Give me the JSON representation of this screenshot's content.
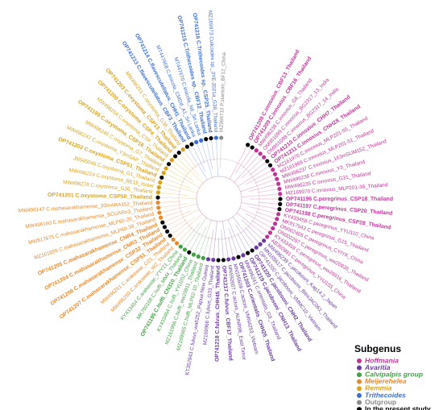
{
  "legend": {
    "title": "Subgenus",
    "entries": [
      {
        "name": "Hoffmania",
        "color": "#c2339a",
        "italic": true
      },
      {
        "name": "Avaritia",
        "color": "#6a3aa0",
        "italic": true
      },
      {
        "name": "Calvipalpis group",
        "color": "#44a047",
        "italic": true
      },
      {
        "name": "Meijerehelea",
        "color": "#e8892a",
        "italic": true
      },
      {
        "name": "Remmia",
        "color": "#d9a21b",
        "italic": true
      },
      {
        "name": "Trithecoides",
        "color": "#3d6fd0",
        "italic": true
      },
      {
        "name": "Outgroup",
        "color": "#8a8a8a",
        "italic": false
      },
      {
        "name": "In the present study",
        "color": "#000000",
        "italic": false
      }
    ]
  },
  "leaves": [
    {
      "label": "OP741208 C.innoxius_CBF13_Thailand",
      "group": 0,
      "study": true
    },
    {
      "label": "OP741209 C.innoxius_CBF16_Thailand",
      "group": 0,
      "study": true
    },
    {
      "label": "MW496238 C.innoxius_G8_Thailand",
      "group": 0,
      "study": false
    },
    {
      "label": "OM951099 C.innoxius_BG2317_13_India",
      "group": 0,
      "study": false
    },
    {
      "label": "OM951098 C.innoxius_BG2317_14_India",
      "group": 0,
      "study": false
    },
    {
      "label": "OP741210 C.innoxius_CHH7_Thailand",
      "group": 0,
      "study": true
    },
    {
      "label": "OP741211 C.innoxius_CNH28_Thailand",
      "group": 0,
      "study": true
    },
    {
      "label": "MZ161970 C.innoxius_MLP201-55_Thailand",
      "group": 0,
      "study": false
    },
    {
      "label": "MZ161969 C.innoxius_MLP201-51_Thailand",
      "group": 0,
      "study": false
    },
    {
      "label": "MW496237 C.innoxius_163mSUM152_Thailand",
      "group": 0,
      "study": false
    },
    {
      "label": "MW496236 C.innoxius_Y3_Thailand",
      "group": 0,
      "study": false
    },
    {
      "label": "MW496235 C.innoxius_G31_Thailand",
      "group": 0,
      "study": false
    },
    {
      "label": "MZ169970 C.innoxius_MLP201-38_Thailand",
      "group": 0,
      "study": false
    },
    {
      "label": "OP741196 C.peregrinus_CSP18_Thailand",
      "group": 0,
      "study": true
    },
    {
      "label": "OP741197 C.peregrinus_CSP20_Thailand",
      "group": 0,
      "study": true
    },
    {
      "label": "OP741198 C.peregrinus_CSP28_Thailand",
      "group": 0,
      "study": true
    },
    {
      "label": "KY433458 C.peregrinus_YYU110_China",
      "group": 0,
      "study": false
    },
    {
      "label": "MK917543 C.peregrinus_G15_Thailand",
      "group": 0,
      "study": false
    },
    {
      "label": "ON002405 C.peregrinus_CYIYK_China",
      "group": 0,
      "study": false
    },
    {
      "label": "ON002297 C.peregrinus_ww20936_Thailand",
      "group": 0,
      "study": false
    },
    {
      "label": "KY433459 C.peregrinus_ww20916_Thailand",
      "group": 0,
      "study": false
    },
    {
      "label": "AB360991 C.peregrinus_YYU103_China",
      "group": 0,
      "study": false
    },
    {
      "label": "MW496239 C.jacobsoni_Kag14.2_Japan",
      "group": 1,
      "study": false
    },
    {
      "label": "MN165617 C.jacobsoni_BitniJAC061_Thailand",
      "group": 1,
      "study": false
    },
    {
      "label": "OP741200 C.jacobsoni_VMMC10_Vietnam",
      "group": 1,
      "study": false
    },
    {
      "label": "OP741220 C.jacobsoni_CNH2_Thailand",
      "group": 1,
      "study": true
    },
    {
      "label": "OP741219 C.jacobsoni_CNH13_Thailand",
      "group": 1,
      "study": true
    },
    {
      "label": "MW496241 C.orientalis_G9_Thailand",
      "group": 1,
      "study": false
    },
    {
      "label": "OP741203 C.orientalis_CHH25_Thailand",
      "group": 1,
      "study": true
    },
    {
      "label": "MN166609 C.actoni_VMN4253_Vietnam",
      "group": 1,
      "study": false
    },
    {
      "label": "MN592607 C.actoni_AUNR96_East Timor",
      "group": 1,
      "study": false
    },
    {
      "label": "OP741217 C.fulvus_CBF17_Thailand",
      "group": 1,
      "study": true
    },
    {
      "label": "OP741218 C.fulvus_CHH45_Thailand",
      "group": 1,
      "study": true
    },
    {
      "label": "MZ169966 C.fulvus_G33_Thailand",
      "group": 1,
      "study": false
    },
    {
      "label": "KT352943 C.fulvus_wa6252_Papua New Guinea",
      "group": 1,
      "study": false
    },
    {
      "label": "MZ169965 C.huffi_MLP62-10_Thailand",
      "group": 2,
      "study": false
    },
    {
      "label": "MZ161966 C.huffi_ww20911_Thailand",
      "group": 2,
      "study": false
    },
    {
      "label": "KY433464 C.huffi_YYU202_China",
      "group": 2,
      "study": false
    },
    {
      "label": "OP741195 C.huffi_CN310_Thailand",
      "group": 2,
      "study": true
    },
    {
      "label": "MK760168 C.huffi_MM4_Thailand",
      "group": 2,
      "study": false
    },
    {
      "label": "KY433454 C.arakawae_YYY21_China",
      "group": 2,
      "study": false
    },
    {
      "label": "MW496260 C.arakawae_W2_Thailand",
      "group": 3,
      "study": false
    },
    {
      "label": "MW496261 C.arakawae_G21_Thailand",
      "group": 3,
      "study": false
    },
    {
      "label": "OP741207 C.mahasarakhamense_CSP51_Thailand",
      "group": 3,
      "study": true
    },
    {
      "label": "OP741206 C.mahasarakhamense_CSP32_Thailand",
      "group": 3,
      "study": true
    },
    {
      "label": "OP741204 C.mahasarakhamense_CNR3_Thailand",
      "group": 3,
      "study": true
    },
    {
      "label": "OP741205 C.mahasarakhamense_CNR4_Thailand",
      "group": 3,
      "study": true
    },
    {
      "label": "MZ161859 C.mahasarakhamense_MLP60-39_Thailand",
      "group": 3,
      "study": false
    },
    {
      "label": "MW817675 C.mahasarakhamense_MLP60-20_Thailand",
      "group": 3,
      "study": false
    },
    {
      "label": "MW496160 C.mahasarakhamense_SCUARn3_Thailand",
      "group": 3,
      "study": false
    },
    {
      "label": "MW496147 C.mahasarakhamense_30mARA152_Thailand",
      "group": 3,
      "study": false
    },
    {
      "label": "OP741201 C.oxystoma_CSP50_Thailand",
      "group": 4,
      "study": true
    },
    {
      "label": "MW496278 C.oxystoma_G36_Thailand",
      "group": 4,
      "study": false
    },
    {
      "label": "MW496224 C.oxystoma_BE15_Israel",
      "group": 4,
      "study": false
    },
    {
      "label": "JN545046 C.oxystoma_G1_Thailand",
      "group": 4,
      "study": false
    },
    {
      "label": "OP741202 C.oxystoma_CSP51_Thailand",
      "group": 4,
      "study": true
    },
    {
      "label": "MW496247 C.oxystoma_Y3mSAP_Thailand",
      "group": 4,
      "study": false
    },
    {
      "label": "MW496246 C.oxystoma_G7_Thailand",
      "group": 4,
      "study": false
    },
    {
      "label": "OP741199 C.oxystoma_CSP16_Thailand",
      "group": 4,
      "study": true
    },
    {
      "label": "MW496254 C.oxystoma_CSP_Thailand",
      "group": 4,
      "study": false
    },
    {
      "label": "OP741200 C.oxystoma_CSP4_Thailand",
      "group": 4,
      "study": true
    },
    {
      "label": "OP741203 C.oxystoma_CSP13_Thailand",
      "group": 4,
      "study": true
    },
    {
      "label": "MW496251 C.oxystoma_G36_Thailand",
      "group": 4,
      "study": false
    },
    {
      "label": "OP741213 C.flavescutellatus_CBF3_Thailand",
      "group": 5,
      "study": true
    },
    {
      "label": "OP741214 C.flavescutellatus_CHH1_Thailand",
      "group": 5,
      "study": true
    },
    {
      "label": "MT447668 C.imicola_CMDd_A1_Sri Lanka",
      "group": 5,
      "study": false
    },
    {
      "label": "MT447670 C.imicola_N6_Sri Lanka",
      "group": 5,
      "study": false
    },
    {
      "label": "OP741215 C.Trithecoides sp._CBF12_Thailand",
      "group": 5,
      "study": true
    },
    {
      "label": "OP741216 C.Trithecoides sp._CSP25_Thailand",
      "group": 5,
      "study": true
    },
    {
      "label": "MZ169973 Culicoides sp._3YE-2021a_G38_Thailand",
      "group": 5,
      "study": false
    },
    {
      "label": "MZ966710 P.stantoni_BF12_China",
      "group": 6,
      "study": false
    }
  ]
}
